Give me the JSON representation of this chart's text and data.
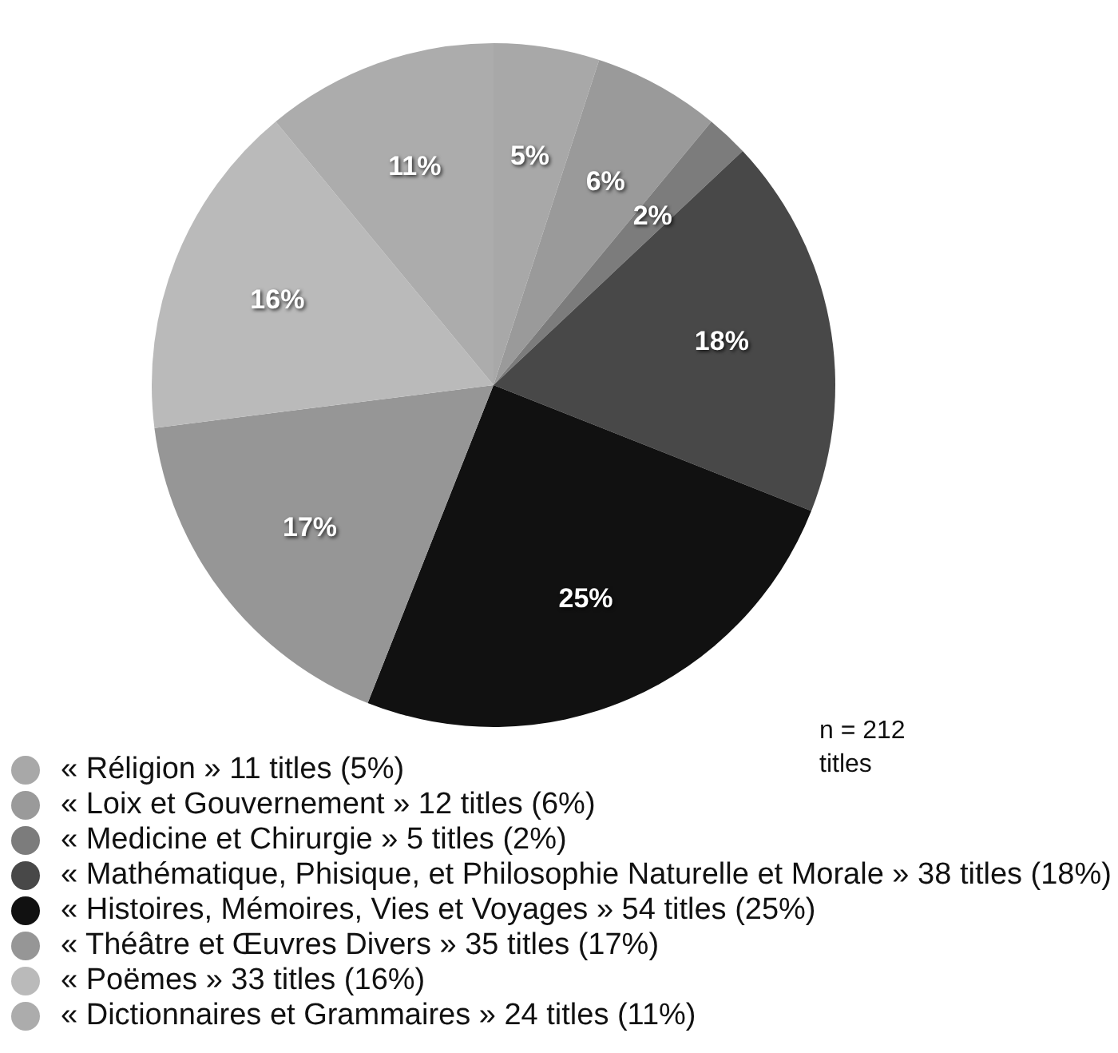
{
  "chart_data": {
    "type": "pie",
    "categories": [
      "« Réligion » 11 titles (5%)",
      "« Loix et Gouvernement » 12 titles (6%)",
      "« Medicine et Chirurgie » 5 titles (2%)",
      "« Mathématique, Phisique, et Philosophie Naturelle et Morale » 38 titles (18%)",
      "« Histoires, Mémoires, Vies et Voyages » 54 titles (25%)",
      "« Théâtre et Œuvres Divers » 35 titles (17%)",
      "« Poëmes » 33 titles (16%)",
      "« Dictionnaires et Grammaires » 24 titles (11%)"
    ],
    "values": [
      5,
      6,
      2,
      18,
      25,
      17,
      16,
      11
    ],
    "colors": [
      "#a8a8a8",
      "#9a9a9a",
      "#7c7c7c",
      "#484848",
      "#111111",
      "#969696",
      "#bababa",
      "#acacac"
    ],
    "value_labels": [
      "5%",
      "6%",
      "2%",
      "18%",
      "25%",
      "17%",
      "16%",
      "11%"
    ],
    "legend": "bottom",
    "annotations": [
      "n = 212 titles"
    ]
  }
}
